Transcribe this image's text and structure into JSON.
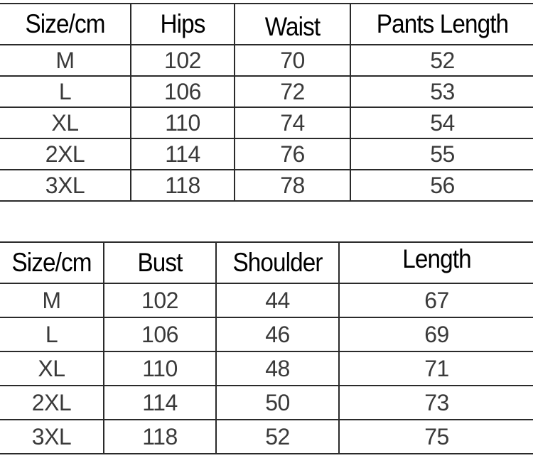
{
  "pants_table": {
    "headers": [
      "Size/cm",
      "Hips",
      "Waist",
      "Pants Length"
    ],
    "rows": [
      [
        "M",
        "102",
        "70",
        "52"
      ],
      [
        "L",
        "106",
        "72",
        "53"
      ],
      [
        "XL",
        "110",
        "74",
        "54"
      ],
      [
        "2XL",
        "114",
        "76",
        "55"
      ],
      [
        "3XL",
        "118",
        "78",
        "56"
      ]
    ]
  },
  "top_table": {
    "headers": [
      "Size/cm",
      "Bust",
      "Shoulder",
      "Length"
    ],
    "rows": [
      [
        "M",
        "102",
        "44",
        "67"
      ],
      [
        "L",
        "106",
        "46",
        "69"
      ],
      [
        "XL",
        "110",
        "48",
        "71"
      ],
      [
        "2XL",
        "114",
        "50",
        "73"
      ],
      [
        "3XL",
        "118",
        "52",
        "75"
      ]
    ]
  }
}
